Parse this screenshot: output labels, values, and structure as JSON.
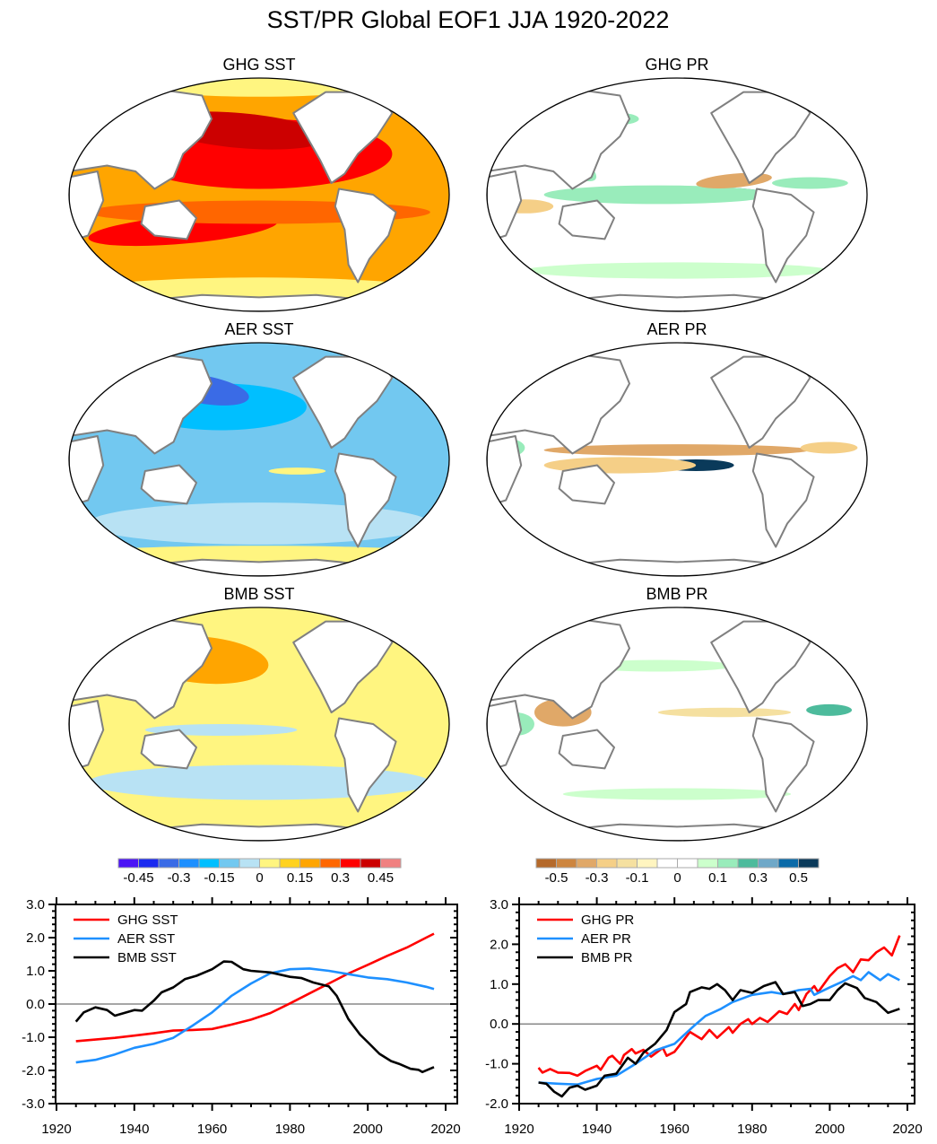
{
  "title": "SST/PR Global EOF1 JJA 1920-2022",
  "chart_data": [
    {
      "type": "heatmap",
      "title": "GHG SST",
      "variable": "SST",
      "colorbar": "sst"
    },
    {
      "type": "heatmap",
      "title": "GHG PR",
      "variable": "PR",
      "colorbar": "pr"
    },
    {
      "type": "heatmap",
      "title": "AER SST",
      "variable": "SST",
      "colorbar": "sst"
    },
    {
      "type": "heatmap",
      "title": "AER PR",
      "variable": "PR",
      "colorbar": "pr"
    },
    {
      "type": "heatmap",
      "title": "BMB SST",
      "variable": "SST",
      "colorbar": "sst"
    },
    {
      "type": "heatmap",
      "title": "BMB PR",
      "variable": "PR",
      "colorbar": "pr"
    },
    {
      "type": "line",
      "xlim": [
        1920,
        2023
      ],
      "ylim": [
        -3,
        3
      ],
      "xticks": [
        "1920",
        "1940",
        "1960",
        "1980",
        "2000",
        "2020"
      ],
      "yticks": [
        "3.0",
        "2.0",
        "1.0",
        "0.0",
        "-1.0",
        "-2.0",
        "-3.0"
      ],
      "legend": "top-left",
      "grid": false,
      "zero_line": true,
      "series": [
        {
          "name": "GHG SST",
          "color": "#ff0000",
          "x": [
            1925,
            1930,
            1935,
            1940,
            1945,
            1950,
            1955,
            1960,
            1965,
            1970,
            1975,
            1980,
            1985,
            1990,
            1995,
            2000,
            2005,
            2010,
            2015,
            2017
          ],
          "y": [
            -1.12,
            -1.07,
            -1.02,
            -0.95,
            -0.88,
            -0.8,
            -0.78,
            -0.75,
            -0.62,
            -0.47,
            -0.27,
            0.02,
            0.32,
            0.62,
            0.92,
            1.18,
            1.45,
            1.7,
            2.0,
            2.12
          ]
        },
        {
          "name": "AER SST",
          "color": "#1e90ff",
          "x": [
            1925,
            1930,
            1935,
            1940,
            1945,
            1950,
            1955,
            1960,
            1965,
            1970,
            1975,
            1980,
            1985,
            1990,
            1995,
            2000,
            2005,
            2010,
            2015,
            2017
          ],
          "y": [
            -1.76,
            -1.68,
            -1.52,
            -1.32,
            -1.2,
            -1.02,
            -0.65,
            -0.25,
            0.25,
            0.62,
            0.93,
            1.05,
            1.07,
            1.0,
            0.9,
            0.8,
            0.75,
            0.65,
            0.52,
            0.45
          ]
        },
        {
          "name": "BMB SST",
          "color": "#000000",
          "x": [
            1925,
            1927,
            1930,
            1933,
            1935,
            1938,
            1940,
            1942,
            1945,
            1947,
            1950,
            1953,
            1956,
            1960,
            1963,
            1965,
            1968,
            1970,
            1975,
            1980,
            1983,
            1986,
            1990,
            1992,
            1995,
            1998,
            2000,
            2003,
            2006,
            2008,
            2011,
            2013,
            2014,
            2017
          ],
          "y": [
            -0.53,
            -0.25,
            -0.1,
            -0.18,
            -0.35,
            -0.25,
            -0.18,
            -0.2,
            0.1,
            0.35,
            0.5,
            0.75,
            0.85,
            1.05,
            1.28,
            1.27,
            1.05,
            1.0,
            0.95,
            0.82,
            0.78,
            0.65,
            0.53,
            0.25,
            -0.45,
            -0.92,
            -1.15,
            -1.5,
            -1.72,
            -1.8,
            -1.95,
            -1.98,
            -2.05,
            -1.9
          ]
        }
      ]
    },
    {
      "type": "line",
      "xlim": [
        1920,
        2022
      ],
      "ylim": [
        -2,
        3
      ],
      "xticks": [
        "1920",
        "1940",
        "1960",
        "1980",
        "2000",
        "2020"
      ],
      "yticks": [
        "3.0",
        "2.0",
        "1.0",
        "0.0",
        "-1.0",
        "-2.0"
      ],
      "legend": "top-left",
      "grid": false,
      "zero_line": true,
      "series": [
        {
          "name": "GHG PR",
          "color": "#ff0000",
          "x": [
            1925,
            1926,
            1928,
            1930,
            1933,
            1935,
            1937,
            1940,
            1941,
            1943,
            1944,
            1946,
            1947,
            1949,
            1950,
            1952,
            1954,
            1957,
            1958,
            1960,
            1962,
            1964,
            1967,
            1969,
            1971,
            1974,
            1975,
            1977,
            1979,
            1980,
            1982,
            1984,
            1987,
            1989,
            1991,
            1992,
            1994,
            1996,
            1997,
            2000,
            2002,
            2004,
            2006,
            2008,
            2010,
            2012,
            2014,
            2016,
            2018
          ],
          "y": [
            -1.1,
            -1.22,
            -1.13,
            -1.22,
            -1.23,
            -1.3,
            -1.18,
            -1.05,
            -1.15,
            -0.85,
            -0.8,
            -1.0,
            -0.78,
            -0.63,
            -0.74,
            -0.65,
            -0.82,
            -0.6,
            -0.8,
            -0.7,
            -0.45,
            -0.2,
            -0.38,
            -0.15,
            -0.35,
            -0.08,
            -0.22,
            0.0,
            0.12,
            0.0,
            0.15,
            0.05,
            0.32,
            0.25,
            0.5,
            0.35,
            0.75,
            0.95,
            0.8,
            1.2,
            1.4,
            1.5,
            1.3,
            1.62,
            1.6,
            1.8,
            1.92,
            1.72,
            2.22
          ]
        },
        {
          "name": "AER PR",
          "color": "#1e90ff",
          "x": [
            1925,
            1930,
            1935,
            1940,
            1945,
            1950,
            1955,
            1960,
            1965,
            1968,
            1972,
            1975,
            1980,
            1985,
            1988,
            1992,
            1995,
            1996,
            2000,
            2003,
            2006,
            2008,
            2010,
            2013,
            2015,
            2018
          ],
          "y": [
            -1.47,
            -1.5,
            -1.52,
            -1.38,
            -1.3,
            -1.0,
            -0.67,
            -0.5,
            -0.05,
            0.2,
            0.38,
            0.55,
            0.73,
            0.8,
            0.75,
            0.85,
            0.88,
            0.73,
            0.92,
            1.05,
            1.2,
            1.1,
            1.3,
            1.1,
            1.25,
            1.1
          ]
        },
        {
          "name": "BMB PR",
          "color": "#000000",
          "x": [
            1925,
            1927,
            1929,
            1931,
            1933,
            1935,
            1937,
            1940,
            1942,
            1945,
            1948,
            1950,
            1952,
            1955,
            1958,
            1960,
            1963,
            1964,
            1967,
            1969,
            1971,
            1973,
            1975,
            1977,
            1980,
            1983,
            1986,
            1988,
            1991,
            1993,
            1995,
            1997,
            2000,
            2002,
            2004,
            2007,
            2009,
            2012,
            2015,
            2018
          ],
          "y": [
            -1.47,
            -1.5,
            -1.7,
            -1.82,
            -1.6,
            -1.55,
            -1.65,
            -1.55,
            -1.3,
            -1.25,
            -0.85,
            -1.0,
            -0.72,
            -0.5,
            -0.15,
            0.3,
            0.5,
            0.8,
            0.92,
            0.88,
            1.0,
            0.85,
            0.6,
            0.85,
            0.78,
            0.95,
            1.05,
            0.75,
            0.8,
            0.45,
            0.5,
            0.6,
            0.6,
            0.85,
            1.02,
            0.9,
            0.65,
            0.55,
            0.28,
            0.38
          ]
        }
      ]
    }
  ],
  "colorbars": {
    "sst": {
      "colors": [
        "#4b13f5",
        "#1b2af0",
        "#3a6be6",
        "#1e90ff",
        "#00bfff",
        "#72c8f0",
        "#b8e2f4",
        "#fff580",
        "#ffd21f",
        "#ffa500",
        "#ff6600",
        "#ff0000",
        "#cc0000",
        "#f08080"
      ],
      "labels": [
        "-0.45",
        "-0.3",
        "-0.15",
        "0",
        "0.15",
        "0.3",
        "0.45"
      ]
    },
    "pr": {
      "colors": [
        "#b5692a",
        "#cd853f",
        "#e0a868",
        "#f5cf87",
        "#f5e0a0",
        "#fff5c0",
        "#ffffff",
        "#ffffff",
        "#ccffcc",
        "#99ecbb",
        "#4dbb9c",
        "#6fa8c8",
        "#0a6aa8",
        "#0a3a5a"
      ],
      "labels": [
        "-0.5",
        "-0.3",
        "-0.1",
        "0",
        "0.1",
        "0.3",
        "0.5"
      ]
    }
  }
}
